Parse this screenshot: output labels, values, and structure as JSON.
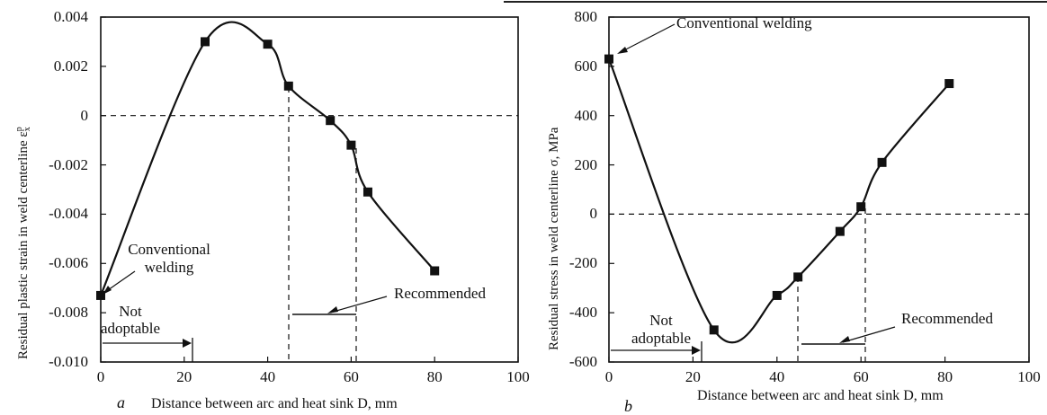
{
  "chart_data": [
    {
      "type": "line",
      "panel_label": "a",
      "xlabel": "Distance between arc and heat sink D, mm",
      "ylabel": "Residual plastic strain in weld centerline ε",
      "ylabel_super": "p",
      "ylabel_sub": "x",
      "xlim": [
        0,
        100
      ],
      "ylim": [
        -0.01,
        0.004
      ],
      "x_ticks": [
        "0",
        "20",
        "40",
        "60",
        "80",
        "100"
      ],
      "y_ticks": [
        "-0.010",
        "-0.008",
        "-0.006",
        "-0.004",
        "-0.002",
        "0",
        "0.002",
        "0.004"
      ],
      "series": [
        {
          "x": [
            0,
            25,
            40,
            45,
            55,
            60,
            64,
            80
          ],
          "y": [
            -0.0073,
            0.003,
            0.0029,
            0.0012,
            -0.0002,
            -0.0012,
            -0.0031,
            -0.0063
          ]
        }
      ],
      "reference_line_y": 0,
      "annotations": {
        "conventional_line1": "Conventional",
        "conventional_line2": "welding",
        "not_line1": "Not",
        "not_line2": "adoptable",
        "recommended": "Recommended"
      },
      "recommended_range": [
        45,
        60
      ],
      "not_adoptable_limit": 23
    },
    {
      "type": "line",
      "panel_label": "b",
      "xlabel": "Distance between arc and heat sink D, mm",
      "ylabel": "Residual stress in weld centerline σ, MPa",
      "xlim": [
        0,
        100
      ],
      "ylim": [
        -600,
        800
      ],
      "x_ticks": [
        "0",
        "20",
        "40",
        "60",
        "80",
        "100"
      ],
      "y_ticks": [
        "-600",
        "-400",
        "-200",
        "0",
        "200",
        "400",
        "600",
        "800"
      ],
      "series": [
        {
          "x": [
            0,
            25,
            40,
            45,
            55,
            60,
            65,
            81
          ],
          "y": [
            630,
            -470,
            -330,
            -255,
            -70,
            30,
            210,
            530
          ]
        }
      ],
      "reference_line_y": 0,
      "annotations": {
        "conventional": "Conventional welding",
        "not_line1": "Not",
        "not_line2": "adoptable",
        "recommended": "Recommended"
      },
      "recommended_range": [
        45,
        60
      ],
      "not_adoptable_limit": 23
    }
  ]
}
